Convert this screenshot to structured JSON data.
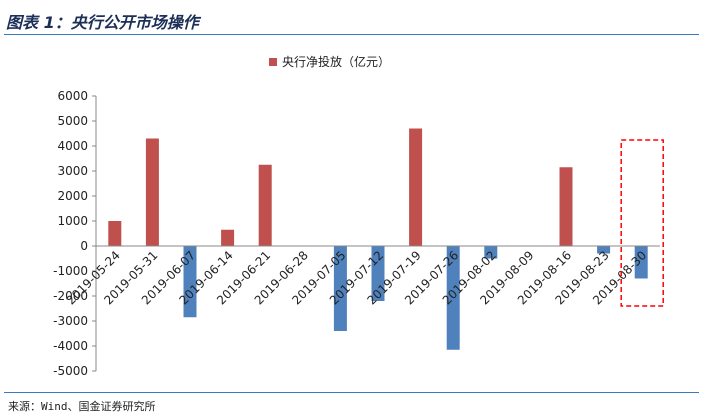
{
  "header": {
    "title": "图表 1：央行公开市场操作"
  },
  "footer": {
    "source": "来源：Wind、国金证券研究所"
  },
  "colors": {
    "positive": "#c0504d",
    "negative": "#4f81bd",
    "highlight": "#ff0000",
    "rule": "#3b7bbd"
  },
  "chart_data": {
    "type": "bar",
    "legend": {
      "label": "央行净投放（亿元）",
      "position": "top"
    },
    "categories": [
      "2019-05-24",
      "2019-05-31",
      "2019-06-07",
      "2019-06-14",
      "2019-06-21",
      "2019-06-28",
      "2019-07-05",
      "2019-07-12",
      "2019-07-19",
      "2019-07-26",
      "2019-08-02",
      "2019-08-09",
      "2019-08-16",
      "2019-08-23",
      "2019-08-30"
    ],
    "series": [
      {
        "name": "央行净投放（亿元）",
        "values": [
          1000,
          4300,
          -2850,
          650,
          3250,
          0,
          -3400,
          -2200,
          4700,
          -4150,
          -500,
          0,
          3150,
          -300,
          -1300
        ]
      }
    ],
    "yticks": [
      6000,
      5000,
      4000,
      3000,
      2000,
      1000,
      0,
      -1000,
      -2000,
      -3000,
      -4000,
      -5000
    ],
    "ylim": [
      -5000,
      6000
    ],
    "grid": false,
    "highlight_category": "2019-08-30"
  }
}
